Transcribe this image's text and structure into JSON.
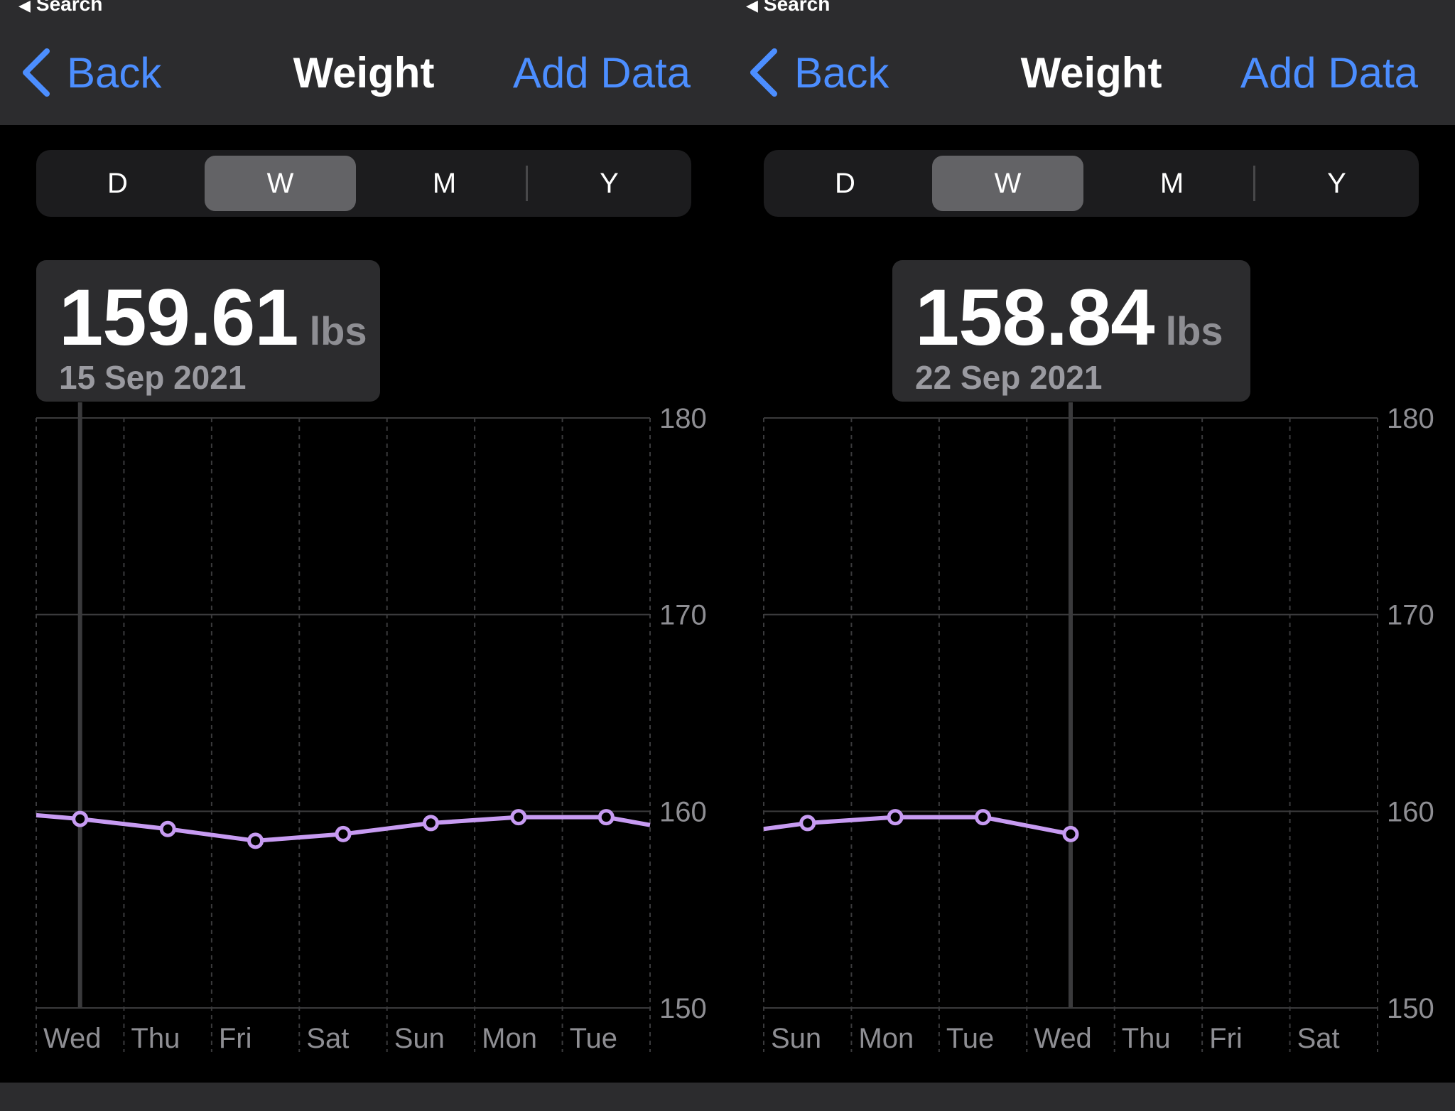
{
  "colors": {
    "accent": "#4c8eff",
    "line": "#c79bf2",
    "selection_line": "#3a3a3c",
    "background": "#000000",
    "bar": "#2c2c2e"
  },
  "panels": [
    {
      "status": {
        "back_search": "Search"
      },
      "nav": {
        "back_label": "Back",
        "title": "Weight",
        "add_data_label": "Add Data"
      },
      "segments": [
        "D",
        "W",
        "M",
        "Y"
      ],
      "selected_segment": "W",
      "callout": {
        "value": "159.61",
        "unit": "lbs",
        "date": "15 Sep 2021"
      },
      "chart_data": {
        "type": "line",
        "x": [
          "Wed",
          "Thu",
          "Fri",
          "Sat",
          "Sun",
          "Mon",
          "Tue"
        ],
        "y": [
          159.61,
          159.1,
          158.5,
          158.84,
          159.4,
          159.7,
          159.7
        ],
        "y_ticks": [
          180,
          170,
          160,
          150
        ],
        "ylim": [
          150,
          180
        ],
        "selected_index": 0,
        "line_enters_from_left_at": 159.8,
        "line_exits_right_at": 159.3,
        "grid": true
      }
    },
    {
      "status": {
        "back_search": "Search"
      },
      "nav": {
        "back_label": "Back",
        "title": "Weight",
        "add_data_label": "Add Data"
      },
      "segments": [
        "D",
        "W",
        "M",
        "Y"
      ],
      "selected_segment": "W",
      "callout": {
        "value": "158.84",
        "unit": "lbs",
        "date": "22 Sep 2021"
      },
      "chart_data": {
        "type": "line",
        "x": [
          "Sun",
          "Mon",
          "Tue",
          "Wed",
          "Thu",
          "Fri",
          "Sat"
        ],
        "y": [
          159.4,
          159.7,
          159.7,
          158.84,
          null,
          null,
          null
        ],
        "y_ticks": [
          180,
          170,
          160,
          150
        ],
        "ylim": [
          150,
          180
        ],
        "selected_index": 3,
        "line_enters_from_left_at": 159.1,
        "grid": true
      }
    }
  ]
}
